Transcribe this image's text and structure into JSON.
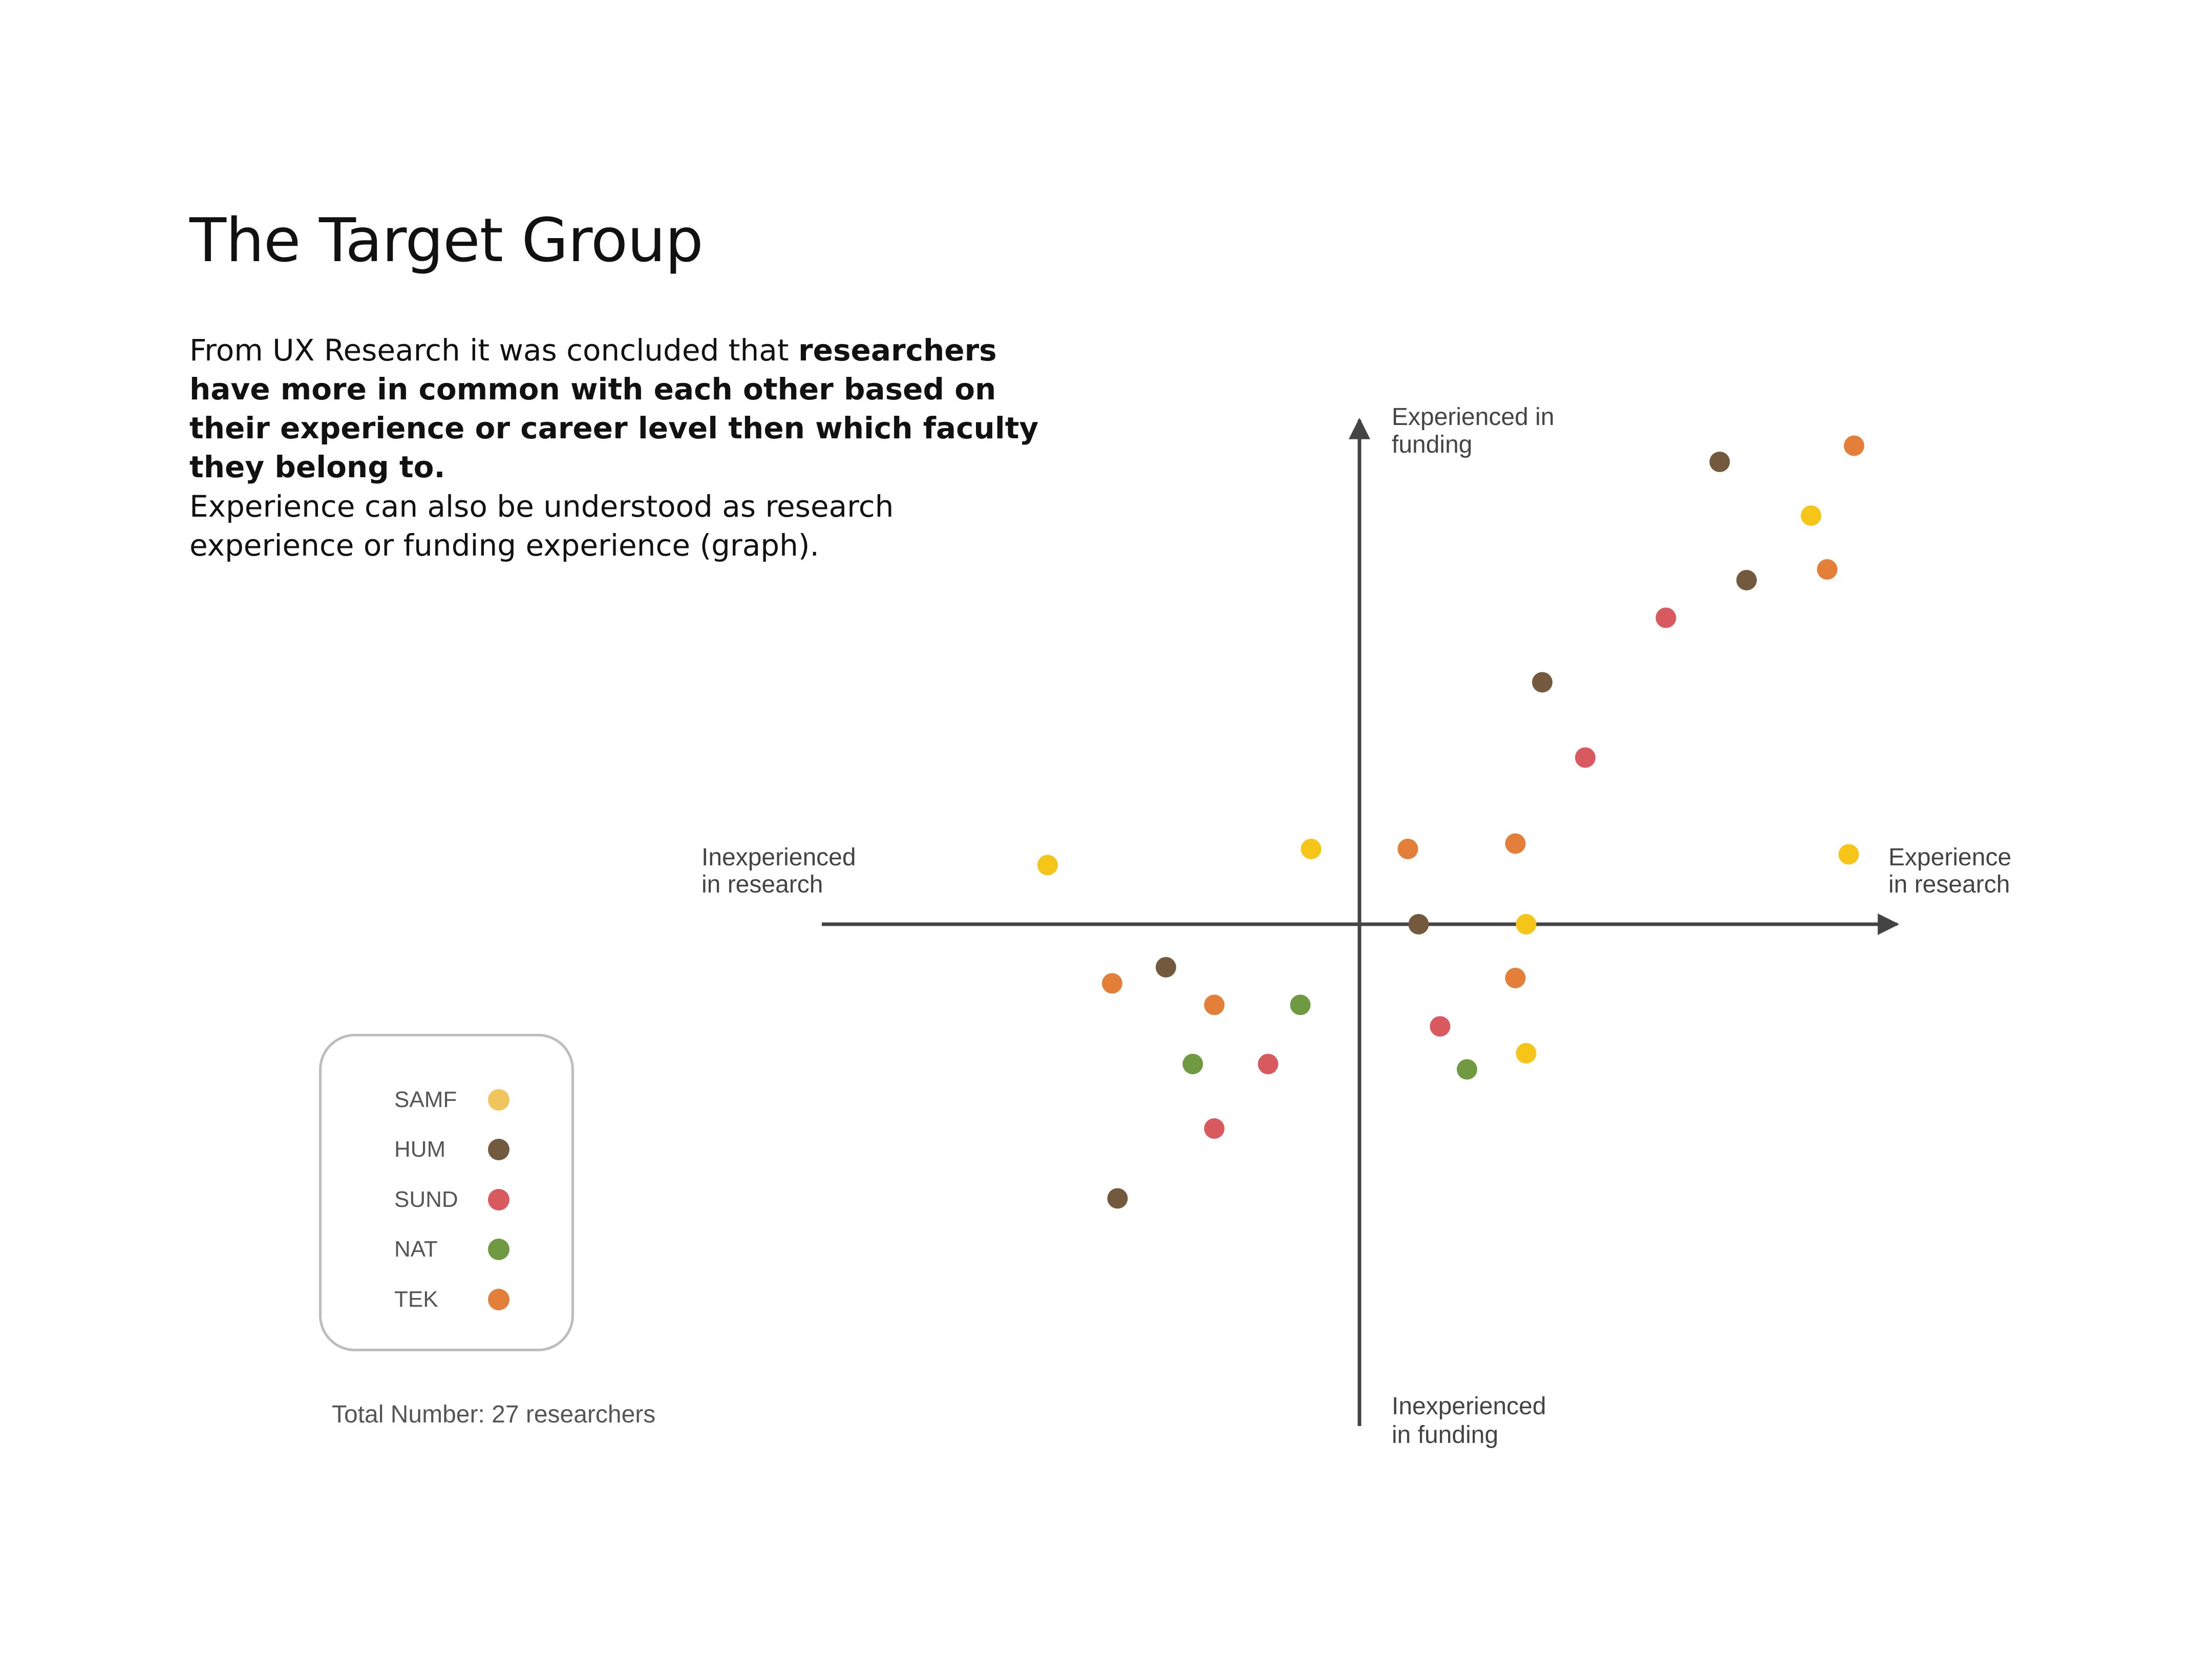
{
  "title": "The Target Group",
  "paragraph1": {
    "lead": "From UX Research it was concluded that ",
    "emphasis": "researchers have more in common with each other based on their experience or career level then which faculty they belong to."
  },
  "paragraph2": "Experience can also be understood as research experience or funding experience (graph).",
  "colors": {
    "SAMF": "#f5c518",
    "HUM": "#735a3e",
    "SUND": "#d95a5e",
    "NAT": "#6f9a42",
    "TEK": "#e47f3a"
  },
  "legend": {
    "items": [
      {
        "label": "SAMF",
        "color": "#efc55c"
      },
      {
        "label": "HUM",
        "color": "#735a3e"
      },
      {
        "label": "SUND",
        "color": "#d95a5e"
      },
      {
        "label": "NAT",
        "color": "#6f9a42"
      },
      {
        "label": "TEK",
        "color": "#e47f3a"
      }
    ]
  },
  "total_text": "Total Number: 27 researchers",
  "chart_data": {
    "type": "scatter",
    "axes": {
      "x_positive": "Experience in research",
      "x_negative": "Inexperienced in research",
      "y_positive": "Experienced in funding",
      "y_negative": "Inexperienced in funding",
      "x_positive_lines": [
        "Experience",
        "in research"
      ],
      "x_negative_lines": [
        "Inexperienced",
        "in research"
      ],
      "y_positive_lines": [
        "Experienced in",
        "funding"
      ],
      "y_negative_lines": [
        "Inexperienced",
        "in funding"
      ]
    },
    "xlim": [
      -1,
      1
    ],
    "ylim": [
      -1,
      1
    ],
    "points": [
      {
        "faculty": "SAMF",
        "x": -0.58,
        "y": 0.11
      },
      {
        "faculty": "SAMF",
        "x": -0.09,
        "y": 0.14
      },
      {
        "faculty": "SAMF",
        "x": 0.31,
        "y": 0.0
      },
      {
        "faculty": "SAMF",
        "x": 0.31,
        "y": -0.24
      },
      {
        "faculty": "SAMF",
        "x": 0.91,
        "y": 0.13
      },
      {
        "faculty": "SAMF",
        "x": 0.84,
        "y": 0.76
      },
      {
        "faculty": "HUM",
        "x": 0.67,
        "y": 0.86
      },
      {
        "faculty": "HUM",
        "x": 0.72,
        "y": 0.64
      },
      {
        "faculty": "HUM",
        "x": 0.34,
        "y": 0.45
      },
      {
        "faculty": "HUM",
        "x": 0.11,
        "y": 0.0
      },
      {
        "faculty": "HUM",
        "x": -0.36,
        "y": -0.08
      },
      {
        "faculty": "HUM",
        "x": -0.45,
        "y": -0.51
      },
      {
        "faculty": "SUND",
        "x": 0.57,
        "y": 0.57
      },
      {
        "faculty": "SUND",
        "x": 0.42,
        "y": 0.31
      },
      {
        "faculty": "SUND",
        "x": 0.15,
        "y": -0.19
      },
      {
        "faculty": "SUND",
        "x": -0.17,
        "y": -0.26
      },
      {
        "faculty": "SUND",
        "x": -0.27,
        "y": -0.38
      },
      {
        "faculty": "NAT",
        "x": -0.11,
        "y": -0.15
      },
      {
        "faculty": "NAT",
        "x": -0.31,
        "y": -0.26
      },
      {
        "faculty": "NAT",
        "x": 0.2,
        "y": -0.27
      },
      {
        "faculty": "TEK",
        "x": 0.92,
        "y": 0.89
      },
      {
        "faculty": "TEK",
        "x": 0.87,
        "y": 0.66
      },
      {
        "faculty": "TEK",
        "x": 0.09,
        "y": 0.14
      },
      {
        "faculty": "TEK",
        "x": 0.29,
        "y": 0.15
      },
      {
        "faculty": "TEK",
        "x": 0.29,
        "y": -0.1
      },
      {
        "faculty": "TEK",
        "x": -0.46,
        "y": -0.11
      },
      {
        "faculty": "TEK",
        "x": -0.27,
        "y": -0.15
      }
    ]
  }
}
